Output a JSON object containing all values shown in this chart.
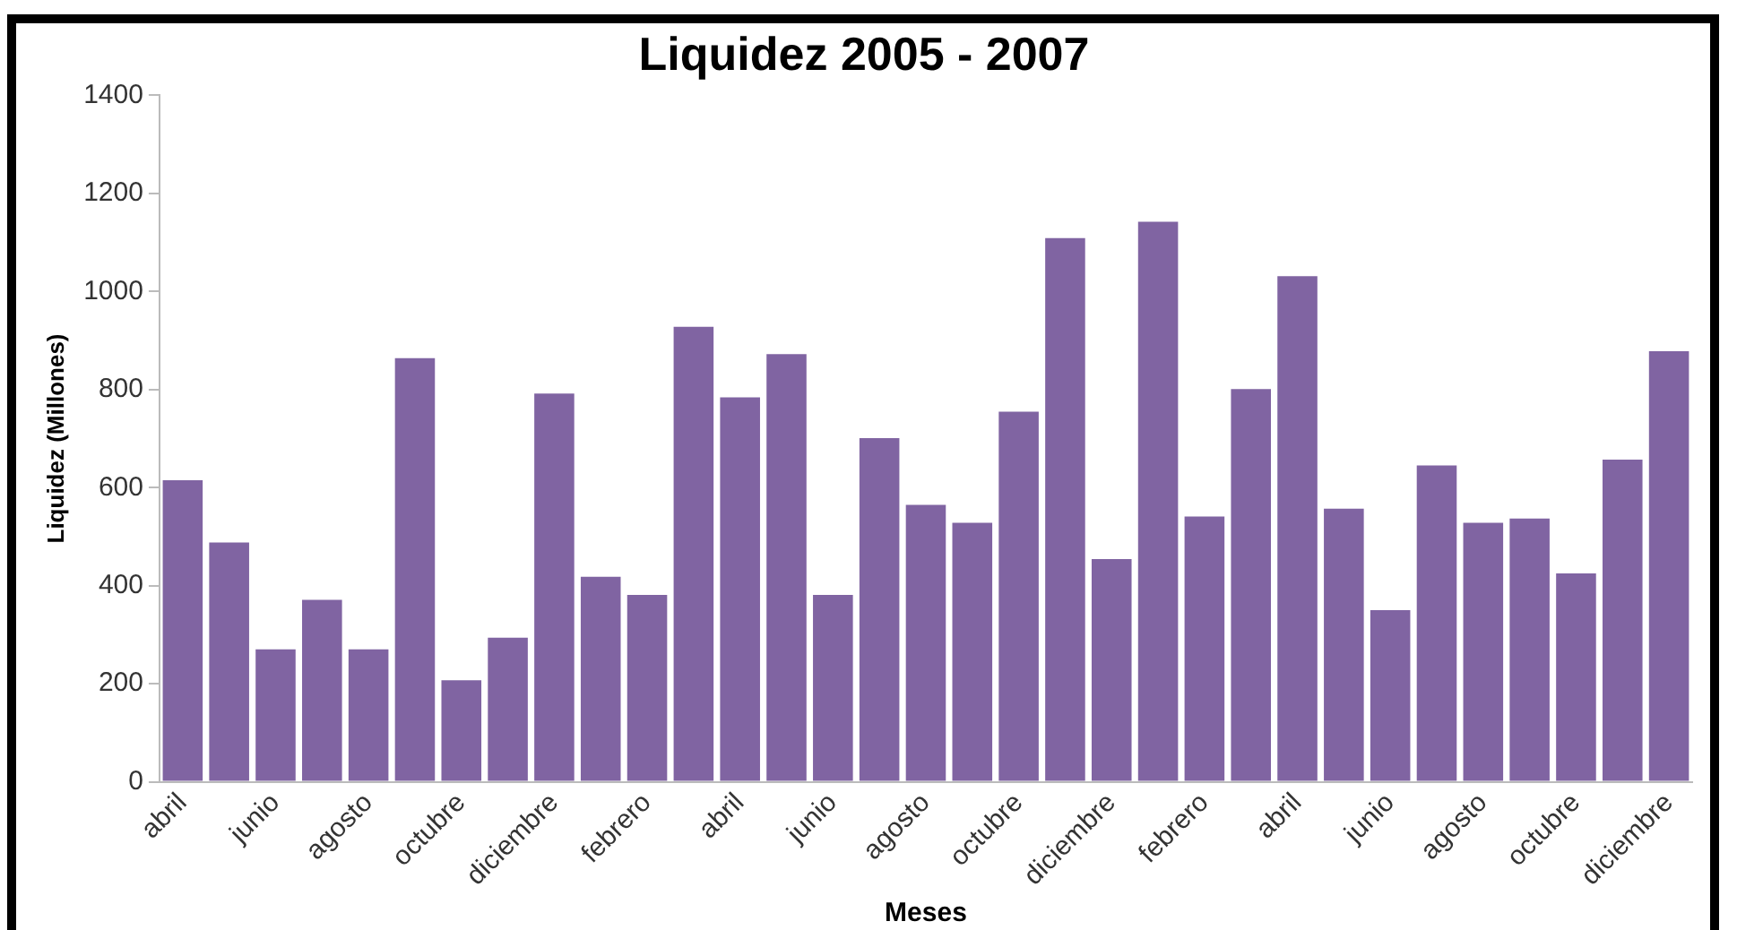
{
  "chart_data": {
    "type": "bar",
    "title": "Liquidez 2005 - 2007",
    "xlabel": "Meses",
    "ylabel": "Liquidez (Millones)",
    "categories": [
      "abril",
      null,
      "junio",
      null,
      "agosto",
      null,
      "octubre",
      null,
      "diciembre",
      null,
      "febrero",
      null,
      "abril",
      null,
      "junio",
      null,
      "agosto",
      null,
      "octubre",
      null,
      "diciembre",
      null,
      "febrero",
      null,
      "abril",
      null,
      "junio",
      null,
      "agosto",
      null,
      "octubre",
      null,
      "diciembre"
    ],
    "values": [
      615,
      488,
      270,
      371,
      270,
      864,
      207,
      294,
      792,
      418,
      381,
      928,
      784,
      872,
      381,
      701,
      565,
      528,
      755,
      1109,
      454,
      1142,
      541,
      801,
      1031,
      557,
      350,
      645,
      528,
      537,
      425,
      657,
      878
    ],
    "color": "#8064a2",
    "ylim": [
      0,
      1400
    ],
    "yticks": [
      0,
      200,
      400,
      600,
      800,
      1000,
      1200,
      1400
    ],
    "grid": false,
    "legend": false
  }
}
